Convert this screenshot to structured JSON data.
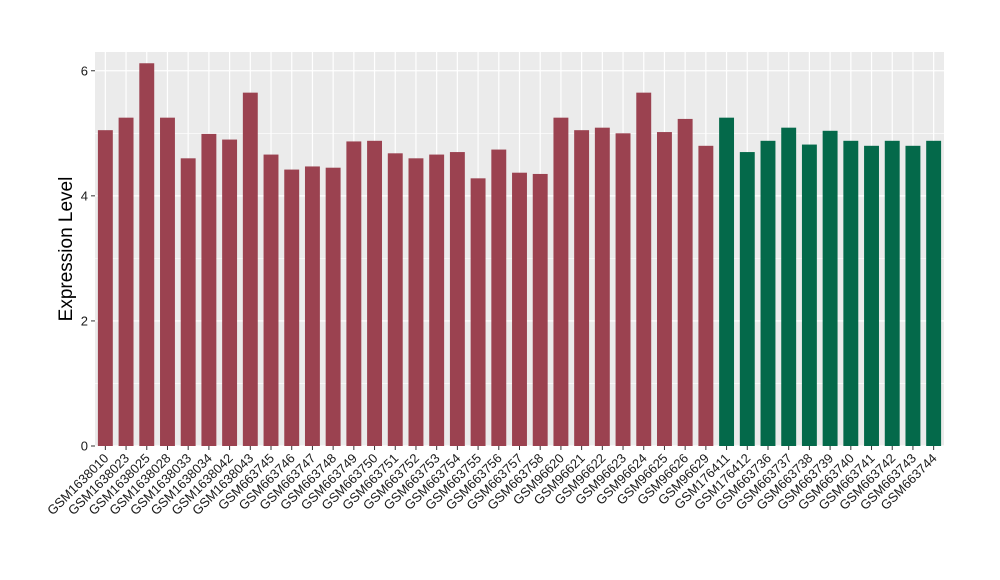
{
  "chart_data": {
    "type": "bar",
    "title": "",
    "xlabel": "",
    "ylabel": "Expression Level",
    "ylim": [
      0,
      6.3
    ],
    "yticks": [
      0,
      2,
      4,
      6
    ],
    "grid": true,
    "legend": "none",
    "colors": {
      "background": "#ebebeb",
      "grid": "#ffffff",
      "group_a": "#9b4250",
      "group_b": "#04694a"
    },
    "categories": [
      "GSM1638010",
      "GSM1638023",
      "GSM1638025",
      "GSM1638028",
      "GSM1638033",
      "GSM1638034",
      "GSM1638042",
      "GSM1638043",
      "GSM663745",
      "GSM663746",
      "GSM663747",
      "GSM663748",
      "GSM663749",
      "GSM663750",
      "GSM663751",
      "GSM663752",
      "GSM663753",
      "GSM663754",
      "GSM663755",
      "GSM663756",
      "GSM663757",
      "GSM663758",
      "GSM96620",
      "GSM96621",
      "GSM96622",
      "GSM96623",
      "GSM96624",
      "GSM96625",
      "GSM96626",
      "GSM96629",
      "GSM176411",
      "GSM176412",
      "GSM663736",
      "GSM663737",
      "GSM663738",
      "GSM663739",
      "GSM663740",
      "GSM663741",
      "GSM663742",
      "GSM663743",
      "GSM663744"
    ],
    "values": [
      5.05,
      5.25,
      6.12,
      5.25,
      4.6,
      4.99,
      4.9,
      5.65,
      4.66,
      4.42,
      4.47,
      4.45,
      4.87,
      4.88,
      4.68,
      4.6,
      4.66,
      4.7,
      4.28,
      4.74,
      4.37,
      4.35,
      5.25,
      5.05,
      5.09,
      5.0,
      5.65,
      5.02,
      5.23,
      4.8,
      5.25,
      4.7,
      4.88,
      5.09,
      4.82,
      5.04,
      4.88,
      4.8,
      4.88,
      4.8,
      4.88
    ],
    "groups": [
      "a",
      "a",
      "a",
      "a",
      "a",
      "a",
      "a",
      "a",
      "a",
      "a",
      "a",
      "a",
      "a",
      "a",
      "a",
      "a",
      "a",
      "a",
      "a",
      "a",
      "a",
      "a",
      "a",
      "a",
      "a",
      "a",
      "a",
      "a",
      "a",
      "a",
      "b",
      "b",
      "b",
      "b",
      "b",
      "b",
      "b",
      "b",
      "b",
      "b",
      "b"
    ]
  }
}
